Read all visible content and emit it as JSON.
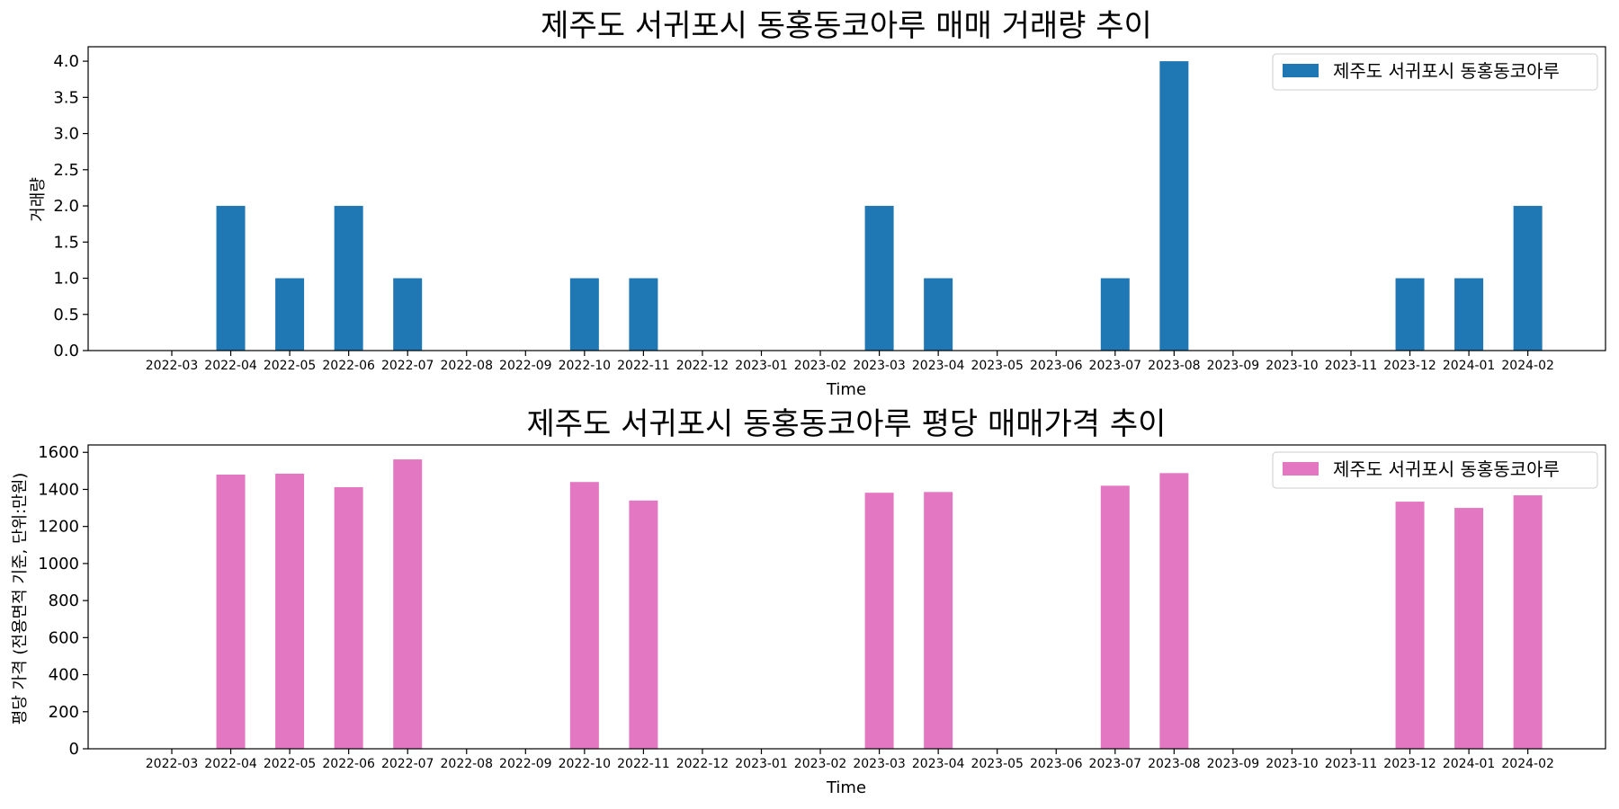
{
  "chart_data": [
    {
      "type": "bar",
      "title": "제주도 서귀포시 동홍동코아루 매매 거래량 추이",
      "xlabel": "Time",
      "ylabel": "거래량",
      "ylim": [
        0,
        4.2
      ],
      "yticks": [
        "0.0",
        "0.5",
        "1.0",
        "1.5",
        "2.0",
        "2.5",
        "3.0",
        "3.5",
        "4.0"
      ],
      "color": "#1f77b4",
      "legend": "top-right",
      "categories": [
        "2022-03",
        "2022-04",
        "2022-05",
        "2022-06",
        "2022-07",
        "2022-08",
        "2022-09",
        "2022-10",
        "2022-11",
        "2022-12",
        "2023-01",
        "2023-02",
        "2023-03",
        "2023-04",
        "2023-05",
        "2023-06",
        "2023-07",
        "2023-08",
        "2023-09",
        "2023-10",
        "2023-11",
        "2023-12",
        "2024-01",
        "2024-02"
      ],
      "series": [
        {
          "name": "제주도 서귀포시 동홍동코아루",
          "values": [
            0,
            2,
            1,
            2,
            1,
            0,
            0,
            1,
            1,
            0,
            0,
            0,
            2,
            1,
            0,
            0,
            1,
            4,
            0,
            0,
            0,
            1,
            1,
            2
          ]
        }
      ]
    },
    {
      "type": "bar",
      "title": "제주도 서귀포시 동홍동코아루 평당 매매가격 추이",
      "xlabel": "Time",
      "ylabel": "평당 가격 (전용면적 기준, 단위:만원)",
      "ylim": [
        0,
        1640
      ],
      "yticks": [
        "0",
        "200",
        "400",
        "600",
        "800",
        "1000",
        "1200",
        "1400",
        "1600"
      ],
      "color": "#e377c2",
      "legend": "top-right",
      "categories": [
        "2022-03",
        "2022-04",
        "2022-05",
        "2022-06",
        "2022-07",
        "2022-08",
        "2022-09",
        "2022-10",
        "2022-11",
        "2022-12",
        "2023-01",
        "2023-02",
        "2023-03",
        "2023-04",
        "2023-05",
        "2023-06",
        "2023-07",
        "2023-08",
        "2023-09",
        "2023-10",
        "2023-11",
        "2023-12",
        "2024-01",
        "2024-02"
      ],
      "series": [
        {
          "name": "제주도 서귀포시 동홍동코아루",
          "values": [
            0,
            1480,
            1485,
            1412,
            1562,
            0,
            0,
            1440,
            1340,
            0,
            0,
            0,
            1382,
            1386,
            0,
            0,
            1420,
            1488,
            0,
            0,
            0,
            1334,
            1300,
            1368
          ]
        }
      ]
    }
  ]
}
